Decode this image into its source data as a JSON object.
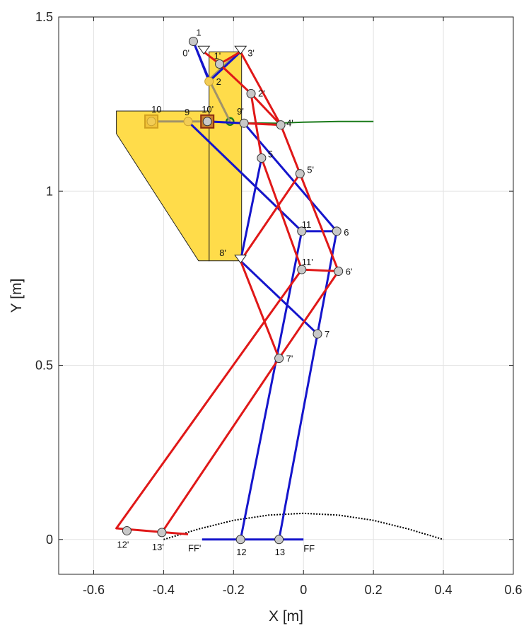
{
  "chart_data": {
    "type": "line",
    "title": "",
    "xlabel": "X [m]",
    "ylabel": "Y [m]",
    "xlim": [
      -0.7,
      0.6
    ],
    "ylim": [
      -0.1,
      1.5
    ],
    "grid": true,
    "xticks": [
      {
        "value": -0.6,
        "label": "-0.6"
      },
      {
        "value": -0.4,
        "label": "-0.4"
      },
      {
        "value": -0.2,
        "label": "-0.2"
      },
      {
        "value": 0,
        "label": "0"
      },
      {
        "value": 0.2,
        "label": "0.2"
      },
      {
        "value": 0.4,
        "label": "0.4"
      },
      {
        "value": 0.6,
        "label": "0.6"
      }
    ],
    "yticks": [
      {
        "value": 0,
        "label": "0"
      },
      {
        "value": 0.5,
        "label": "0.5"
      },
      {
        "value": 1,
        "label": "1"
      },
      {
        "value": 1.5,
        "label": "1.5"
      }
    ],
    "colors": {
      "blue_linkage": "#1515cc",
      "red_linkage": "#e01818",
      "ghost_linkage": "#a0926a",
      "body_fill": "#ffdc4a",
      "trajectory": "#1a7a1a",
      "ground": "#000000",
      "joint_fill": "#c8c8c8"
    },
    "body_polygons": [
      {
        "name": "upper",
        "points": [
          [
            -0.27,
            1.4
          ],
          [
            -0.177,
            1.4
          ],
          [
            -0.177,
            0.8
          ],
          [
            -0.27,
            0.8
          ]
        ]
      },
      {
        "name": "lower",
        "points": [
          [
            -0.535,
            1.23
          ],
          [
            -0.27,
            1.23
          ],
          [
            -0.27,
            0.8
          ],
          [
            -0.3,
            0.8
          ],
          [
            -0.535,
            1.165
          ]
        ]
      }
    ],
    "points": [
      {
        "id": "1",
        "x": -0.315,
        "y": 1.43,
        "label": "1",
        "lx": 4,
        "ly": -8
      },
      {
        "id": "2",
        "x": -0.27,
        "y": 1.315,
        "label": "2",
        "lx": 10,
        "ly": 5,
        "ghost": true
      },
      {
        "id": "5",
        "x": -0.12,
        "y": 1.095,
        "label": "5",
        "lx": 9,
        "ly": -1
      },
      {
        "id": "6",
        "x": 0.095,
        "y": 0.885,
        "label": "6",
        "lx": 10,
        "ly": 6
      },
      {
        "id": "7",
        "x": 0.04,
        "y": 0.59,
        "label": "7",
        "lx": 10,
        "ly": 5
      },
      {
        "id": "9",
        "x": -0.33,
        "y": 1.2,
        "label": "9",
        "lx": -5,
        "ly": -9,
        "ghost": true
      },
      {
        "id": "10",
        "x": -0.435,
        "y": 1.2,
        "label": "10",
        "lx": 0,
        "ly": -13,
        "square": true,
        "ghost": true
      },
      {
        "id": "11",
        "x": -0.005,
        "y": 0.885,
        "label": "11",
        "lx": 0,
        "ly": -5
      },
      {
        "id": "12",
        "x": -0.18,
        "y": 0.0,
        "label": "12",
        "lx": -6,
        "ly": 22
      },
      {
        "id": "13",
        "x": -0.07,
        "y": 0.0,
        "label": "13",
        "lx": -6,
        "ly": 22
      },
      {
        "id": "FF",
        "x": 0.0,
        "y": 0.0,
        "label": "FF",
        "lx": 0,
        "ly": 17,
        "nomarker": true
      },
      {
        "id": "0p",
        "x": -0.285,
        "y": 1.4,
        "label": "0'",
        "lx": -30,
        "ly": 6,
        "triangle": true
      },
      {
        "id": "1p",
        "x": -0.24,
        "y": 1.365,
        "label": "1'",
        "lx": -8,
        "ly": -7
      },
      {
        "id": "2p",
        "x": -0.15,
        "y": 1.28,
        "label": "2'",
        "lx": 10,
        "ly": 4
      },
      {
        "id": "3p",
        "x": -0.18,
        "y": 1.4,
        "label": "3'",
        "lx": 10,
        "ly": 6,
        "triangle": true
      },
      {
        "id": "4p",
        "x": -0.065,
        "y": 1.19,
        "label": "4'",
        "lx": 8,
        "ly": 2
      },
      {
        "id": "5p",
        "x": -0.01,
        "y": 1.05,
        "label": "5'",
        "lx": 10,
        "ly": -1
      },
      {
        "id": "6p",
        "x": 0.1,
        "y": 0.77,
        "label": "6'",
        "lx": 10,
        "ly": 5
      },
      {
        "id": "7p",
        "x": -0.07,
        "y": 0.52,
        "label": "7'",
        "lx": 10,
        "ly": 5
      },
      {
        "id": "8p",
        "x": -0.18,
        "y": 0.8,
        "label": "8'",
        "lx": -30,
        "ly": -7,
        "triangle": true
      },
      {
        "id": "9p",
        "x": -0.17,
        "y": 1.195,
        "label": "9'",
        "lx": -10,
        "ly": -12
      },
      {
        "id": "10p",
        "x": -0.275,
        "y": 1.2,
        "label": "10'",
        "lx": -8,
        "ly": -13,
        "square": true
      },
      {
        "id": "11p",
        "x": -0.005,
        "y": 0.775,
        "label": "11'",
        "lx": 0,
        "ly": -6
      },
      {
        "id": "12p",
        "x": -0.505,
        "y": 0.025,
        "label": "12'",
        "lx": -14,
        "ly": 24
      },
      {
        "id": "13p",
        "x": -0.405,
        "y": 0.02,
        "label": "13'",
        "lx": -14,
        "ly": 25
      },
      {
        "id": "FFp",
        "x": -0.33,
        "y": 0.015,
        "label": "FF'",
        "lx": 0,
        "ly": 24,
        "nomarker": true
      }
    ],
    "red_links": [
      [
        [
          -0.285,
          1.4
        ],
        [
          -0.24,
          1.365
        ],
        [
          -0.15,
          1.28
        ],
        [
          -0.065,
          1.19
        ]
      ],
      [
        [
          -0.18,
          1.4
        ],
        [
          -0.24,
          1.365
        ]
      ],
      [
        [
          -0.18,
          1.4
        ],
        [
          -0.065,
          1.19
        ]
      ],
      [
        [
          -0.17,
          1.195
        ],
        [
          -0.065,
          1.19
        ]
      ],
      [
        [
          -0.065,
          1.19
        ],
        [
          -0.01,
          1.05
        ],
        [
          0.1,
          0.77
        ]
      ],
      [
        [
          -0.18,
          0.8
        ],
        [
          -0.01,
          1.05
        ]
      ],
      [
        [
          -0.15,
          1.28
        ],
        [
          -0.12,
          1.095
        ],
        [
          -0.005,
          0.775
        ],
        [
          0.1,
          0.77
        ]
      ],
      [
        [
          -0.18,
          0.8
        ],
        [
          -0.07,
          0.52
        ]
      ],
      [
        [
          -0.07,
          0.52
        ],
        [
          0.1,
          0.77
        ]
      ],
      [
        [
          -0.005,
          0.775
        ],
        [
          -0.535,
          0.032
        ],
        [
          -0.33,
          0.015
        ]
      ],
      [
        [
          -0.405,
          0.02
        ],
        [
          -0.07,
          0.52
        ]
      ]
    ],
    "blue_links": [
      [
        [
          -0.315,
          1.43
        ],
        [
          -0.27,
          1.315
        ],
        [
          -0.18,
          1.4
        ]
      ],
      [
        [
          -0.315,
          1.43
        ],
        [
          -0.27,
          1.32
        ]
      ],
      [
        [
          -0.275,
          1.2
        ],
        [
          -0.17,
          1.195
        ]
      ],
      [
        [
          -0.12,
          1.095
        ],
        [
          -0.18,
          0.8
        ]
      ],
      [
        [
          -0.17,
          1.195
        ],
        [
          0.095,
          0.885
        ]
      ],
      [
        [
          -0.33,
          1.2
        ],
        [
          -0.005,
          0.885
        ],
        [
          0.095,
          0.885
        ]
      ],
      [
        [
          0.095,
          0.885
        ],
        [
          -0.07,
          0.0
        ]
      ],
      [
        [
          -0.18,
          0.8
        ],
        [
          0.04,
          0.59
        ]
      ],
      [
        [
          -0.005,
          0.885
        ],
        [
          -0.18,
          0.0
        ]
      ],
      [
        [
          -0.18,
          0.0
        ],
        [
          0.0,
          0.0
        ]
      ],
      [
        [
          -0.29,
          0.0
        ],
        [
          -0.18,
          0.0
        ]
      ]
    ],
    "ghost_links": [
      [
        [
          -0.435,
          1.2
        ],
        [
          -0.27,
          1.2
        ],
        [
          -0.17,
          1.195
        ]
      ],
      [
        [
          -0.33,
          1.2
        ],
        [
          -0.005,
          0.885
        ]
      ],
      [
        [
          -0.27,
          1.32
        ],
        [
          -0.21,
          1.2
        ]
      ],
      [
        [
          -0.27,
          1.32
        ],
        [
          -0.19,
          1.395
        ]
      ]
    ],
    "trajectory": [
      [
        -0.235,
        1.198
      ],
      [
        -0.17,
        1.196
      ],
      [
        -0.08,
        1.195
      ],
      [
        0.0,
        1.198
      ],
      [
        0.1,
        1.2
      ],
      [
        0.2,
        1.2
      ]
    ],
    "ground_profile": [
      [
        -0.4,
        0.0
      ],
      [
        -0.3,
        0.03
      ],
      [
        -0.2,
        0.055
      ],
      [
        -0.1,
        0.07
      ],
      [
        0.0,
        0.075
      ],
      [
        0.1,
        0.07
      ],
      [
        0.2,
        0.055
      ],
      [
        0.3,
        0.03
      ],
      [
        0.4,
        0.0
      ]
    ]
  }
}
